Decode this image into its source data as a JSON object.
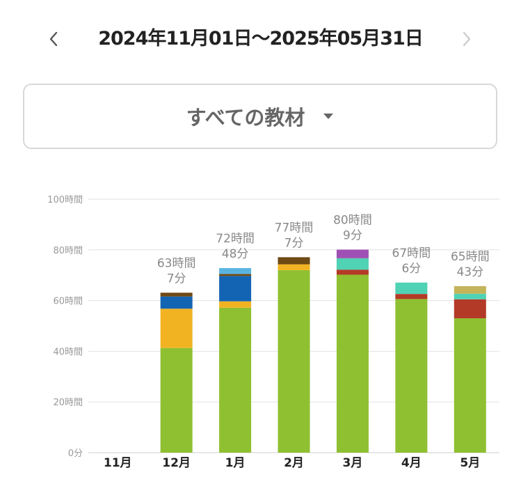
{
  "header": {
    "date_range": "2024年11月01日〜2025年05月31日",
    "prev_icon": "chevron-left-icon",
    "next_icon": "chevron-right-icon"
  },
  "filter": {
    "label": "すべての教材",
    "icon": "caret-down-icon"
  },
  "colors": {
    "green": "#8fc031",
    "yellow": "#f2b323",
    "blue": "#1464b4",
    "brown": "#6e4a14",
    "light_blue": "#5ab4e0",
    "red": "#b43a28",
    "teal": "#50d2b4",
    "purple": "#a050b4",
    "khaki": "#c4b45a"
  },
  "chart_data": {
    "type": "bar",
    "stacked": true,
    "categories": [
      "11月",
      "12月",
      "1月",
      "2月",
      "3月",
      "4月",
      "5月"
    ],
    "y_unit": "hours",
    "ylim": [
      0,
      100
    ],
    "y_ticks": [
      "0分",
      "20時間",
      "40時間",
      "60時間",
      "80時間",
      "100時間"
    ],
    "grid": true,
    "totals": [
      null,
      [
        "63時間",
        "7分"
      ],
      [
        "72時間",
        "48分"
      ],
      [
        "77時間",
        "7分"
      ],
      [
        "80時間",
        "9分"
      ],
      [
        "67時間",
        "6分"
      ],
      [
        "65時間",
        "43分"
      ]
    ],
    "stacks": [
      [],
      [
        {
          "color": "green",
          "value": 41.3
        },
        {
          "color": "yellow",
          "value": 15.5
        },
        {
          "color": "blue",
          "value": 4.8
        },
        {
          "color": "brown",
          "value": 1.5
        }
      ],
      [
        {
          "color": "green",
          "value": 57.2
        },
        {
          "color": "yellow",
          "value": 2.5
        },
        {
          "color": "blue",
          "value": 10.0
        },
        {
          "color": "brown",
          "value": 0.8
        },
        {
          "color": "light_blue",
          "value": 2.3
        }
      ],
      [
        {
          "color": "green",
          "value": 72.0
        },
        {
          "color": "yellow",
          "value": 2.3
        },
        {
          "color": "brown",
          "value": 2.8
        }
      ],
      [
        {
          "color": "green",
          "value": 70.2
        },
        {
          "color": "red",
          "value": 2.0
        },
        {
          "color": "teal",
          "value": 4.5
        },
        {
          "color": "purple",
          "value": 3.4
        }
      ],
      [
        {
          "color": "green",
          "value": 60.6
        },
        {
          "color": "red",
          "value": 2.0
        },
        {
          "color": "teal",
          "value": 4.5
        }
      ],
      [
        {
          "color": "green",
          "value": 53.0
        },
        {
          "color": "red",
          "value": 7.5
        },
        {
          "color": "teal",
          "value": 2.2
        },
        {
          "color": "khaki",
          "value": 3.0
        }
      ]
    ]
  }
}
